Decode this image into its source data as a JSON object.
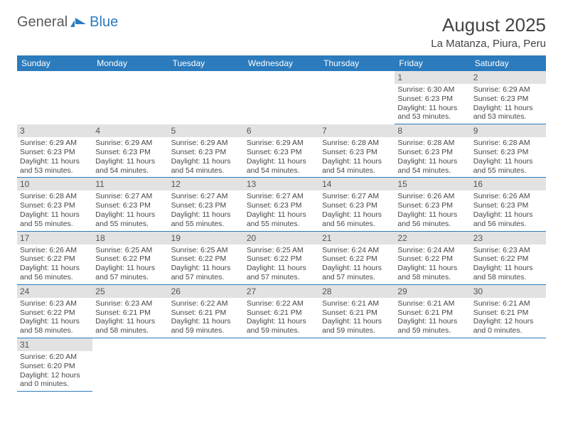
{
  "logo": {
    "general": "General",
    "blue": "Blue"
  },
  "title": "August 2025",
  "location": "La Matanza, Piura, Peru",
  "colors": {
    "header_bg": "#2b7bbd",
    "header_text": "#ffffff",
    "daynum_bg": "#e2e2e2",
    "cell_border": "#2b7bbd",
    "text": "#474747"
  },
  "day_headers": [
    "Sunday",
    "Monday",
    "Tuesday",
    "Wednesday",
    "Thursday",
    "Friday",
    "Saturday"
  ],
  "weeks": [
    [
      {
        "empty": true
      },
      {
        "empty": true
      },
      {
        "empty": true
      },
      {
        "empty": true
      },
      {
        "empty": true
      },
      {
        "day": "1",
        "sunrise": "Sunrise: 6:30 AM",
        "sunset": "Sunset: 6:23 PM",
        "daylight": "Daylight: 11 hours and 53 minutes."
      },
      {
        "day": "2",
        "sunrise": "Sunrise: 6:29 AM",
        "sunset": "Sunset: 6:23 PM",
        "daylight": "Daylight: 11 hours and 53 minutes."
      }
    ],
    [
      {
        "day": "3",
        "sunrise": "Sunrise: 6:29 AM",
        "sunset": "Sunset: 6:23 PM",
        "daylight": "Daylight: 11 hours and 53 minutes."
      },
      {
        "day": "4",
        "sunrise": "Sunrise: 6:29 AM",
        "sunset": "Sunset: 6:23 PM",
        "daylight": "Daylight: 11 hours and 54 minutes."
      },
      {
        "day": "5",
        "sunrise": "Sunrise: 6:29 AM",
        "sunset": "Sunset: 6:23 PM",
        "daylight": "Daylight: 11 hours and 54 minutes."
      },
      {
        "day": "6",
        "sunrise": "Sunrise: 6:29 AM",
        "sunset": "Sunset: 6:23 PM",
        "daylight": "Daylight: 11 hours and 54 minutes."
      },
      {
        "day": "7",
        "sunrise": "Sunrise: 6:28 AM",
        "sunset": "Sunset: 6:23 PM",
        "daylight": "Daylight: 11 hours and 54 minutes."
      },
      {
        "day": "8",
        "sunrise": "Sunrise: 6:28 AM",
        "sunset": "Sunset: 6:23 PM",
        "daylight": "Daylight: 11 hours and 54 minutes."
      },
      {
        "day": "9",
        "sunrise": "Sunrise: 6:28 AM",
        "sunset": "Sunset: 6:23 PM",
        "daylight": "Daylight: 11 hours and 55 minutes."
      }
    ],
    [
      {
        "day": "10",
        "sunrise": "Sunrise: 6:28 AM",
        "sunset": "Sunset: 6:23 PM",
        "daylight": "Daylight: 11 hours and 55 minutes."
      },
      {
        "day": "11",
        "sunrise": "Sunrise: 6:27 AM",
        "sunset": "Sunset: 6:23 PM",
        "daylight": "Daylight: 11 hours and 55 minutes."
      },
      {
        "day": "12",
        "sunrise": "Sunrise: 6:27 AM",
        "sunset": "Sunset: 6:23 PM",
        "daylight": "Daylight: 11 hours and 55 minutes."
      },
      {
        "day": "13",
        "sunrise": "Sunrise: 6:27 AM",
        "sunset": "Sunset: 6:23 PM",
        "daylight": "Daylight: 11 hours and 55 minutes."
      },
      {
        "day": "14",
        "sunrise": "Sunrise: 6:27 AM",
        "sunset": "Sunset: 6:23 PM",
        "daylight": "Daylight: 11 hours and 56 minutes."
      },
      {
        "day": "15",
        "sunrise": "Sunrise: 6:26 AM",
        "sunset": "Sunset: 6:23 PM",
        "daylight": "Daylight: 11 hours and 56 minutes."
      },
      {
        "day": "16",
        "sunrise": "Sunrise: 6:26 AM",
        "sunset": "Sunset: 6:23 PM",
        "daylight": "Daylight: 11 hours and 56 minutes."
      }
    ],
    [
      {
        "day": "17",
        "sunrise": "Sunrise: 6:26 AM",
        "sunset": "Sunset: 6:22 PM",
        "daylight": "Daylight: 11 hours and 56 minutes."
      },
      {
        "day": "18",
        "sunrise": "Sunrise: 6:25 AM",
        "sunset": "Sunset: 6:22 PM",
        "daylight": "Daylight: 11 hours and 57 minutes."
      },
      {
        "day": "19",
        "sunrise": "Sunrise: 6:25 AM",
        "sunset": "Sunset: 6:22 PM",
        "daylight": "Daylight: 11 hours and 57 minutes."
      },
      {
        "day": "20",
        "sunrise": "Sunrise: 6:25 AM",
        "sunset": "Sunset: 6:22 PM",
        "daylight": "Daylight: 11 hours and 57 minutes."
      },
      {
        "day": "21",
        "sunrise": "Sunrise: 6:24 AM",
        "sunset": "Sunset: 6:22 PM",
        "daylight": "Daylight: 11 hours and 57 minutes."
      },
      {
        "day": "22",
        "sunrise": "Sunrise: 6:24 AM",
        "sunset": "Sunset: 6:22 PM",
        "daylight": "Daylight: 11 hours and 58 minutes."
      },
      {
        "day": "23",
        "sunrise": "Sunrise: 6:23 AM",
        "sunset": "Sunset: 6:22 PM",
        "daylight": "Daylight: 11 hours and 58 minutes."
      }
    ],
    [
      {
        "day": "24",
        "sunrise": "Sunrise: 6:23 AM",
        "sunset": "Sunset: 6:22 PM",
        "daylight": "Daylight: 11 hours and 58 minutes."
      },
      {
        "day": "25",
        "sunrise": "Sunrise: 6:23 AM",
        "sunset": "Sunset: 6:21 PM",
        "daylight": "Daylight: 11 hours and 58 minutes."
      },
      {
        "day": "26",
        "sunrise": "Sunrise: 6:22 AM",
        "sunset": "Sunset: 6:21 PM",
        "daylight": "Daylight: 11 hours and 59 minutes."
      },
      {
        "day": "27",
        "sunrise": "Sunrise: 6:22 AM",
        "sunset": "Sunset: 6:21 PM",
        "daylight": "Daylight: 11 hours and 59 minutes."
      },
      {
        "day": "28",
        "sunrise": "Sunrise: 6:21 AM",
        "sunset": "Sunset: 6:21 PM",
        "daylight": "Daylight: 11 hours and 59 minutes."
      },
      {
        "day": "29",
        "sunrise": "Sunrise: 6:21 AM",
        "sunset": "Sunset: 6:21 PM",
        "daylight": "Daylight: 11 hours and 59 minutes."
      },
      {
        "day": "30",
        "sunrise": "Sunrise: 6:21 AM",
        "sunset": "Sunset: 6:21 PM",
        "daylight": "Daylight: 12 hours and 0 minutes."
      }
    ],
    [
      {
        "day": "31",
        "sunrise": "Sunrise: 6:20 AM",
        "sunset": "Sunset: 6:20 PM",
        "daylight": "Daylight: 12 hours and 0 minutes."
      },
      {
        "empty": true
      },
      {
        "empty": true
      },
      {
        "empty": true
      },
      {
        "empty": true
      },
      {
        "empty": true
      },
      {
        "empty": true
      }
    ]
  ]
}
